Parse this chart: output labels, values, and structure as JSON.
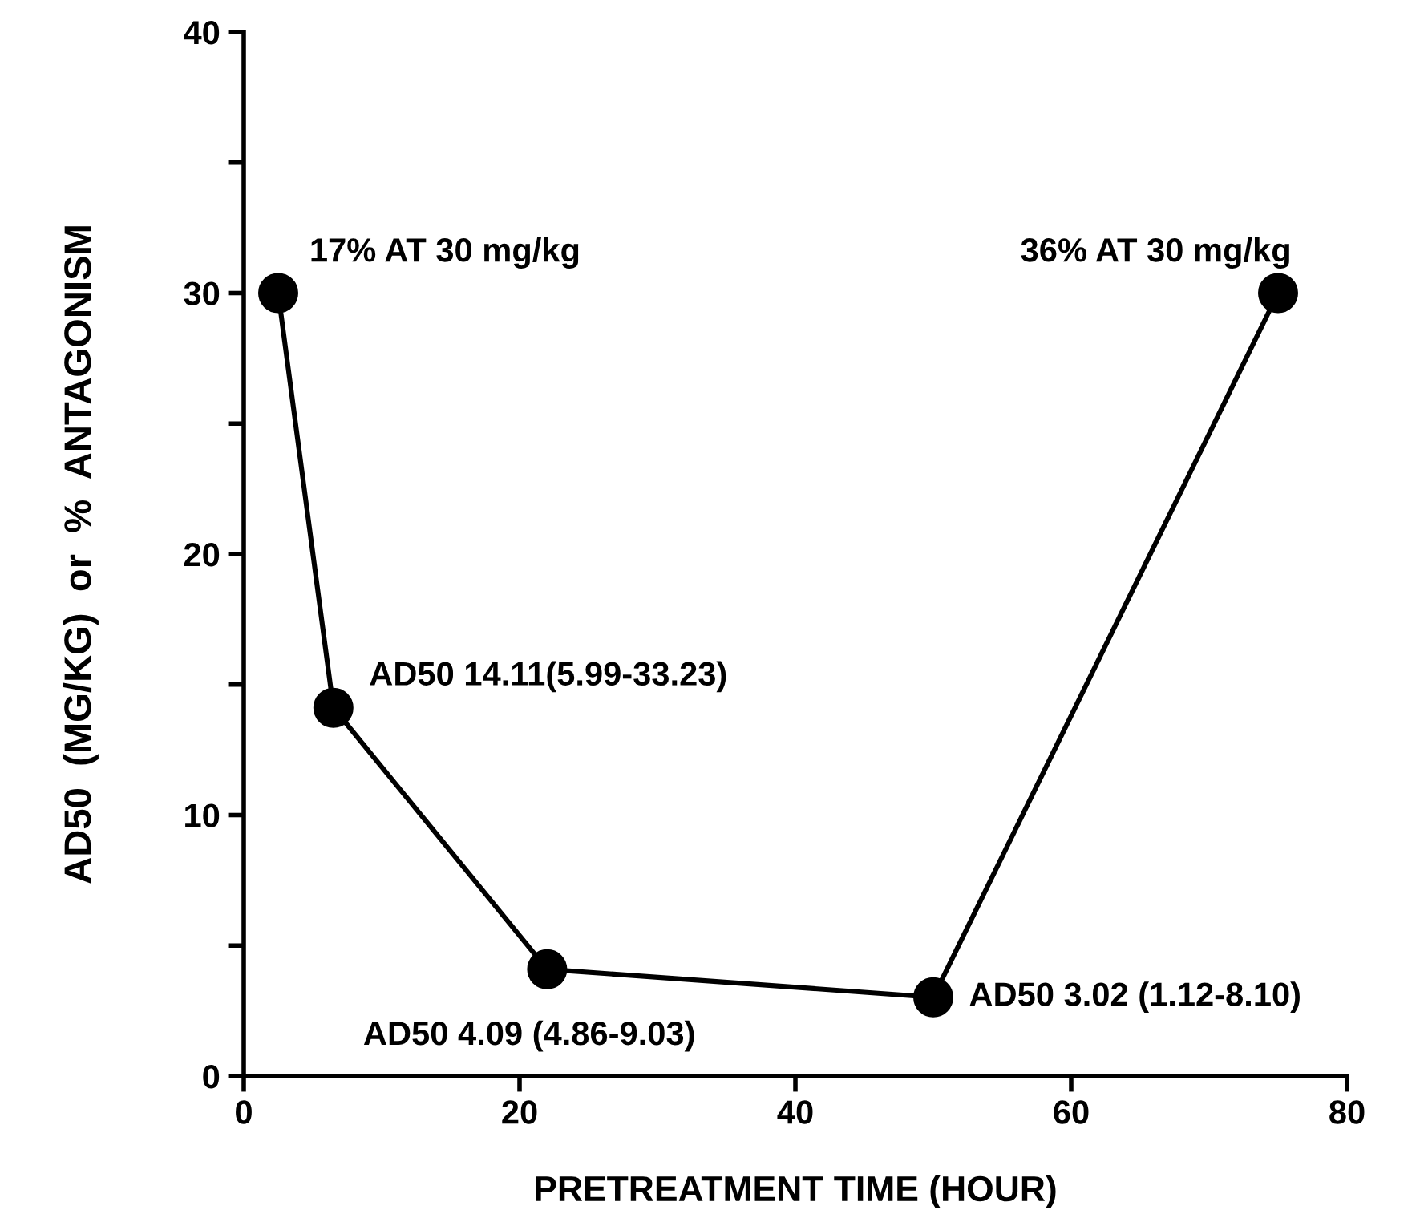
{
  "chart_data": {
    "type": "line",
    "xlabel": "PRETREATMENT TIME (HOUR)",
    "ylabel": "AD50  (MG/KG)  or  %  ANTAGONISM",
    "x": [
      2.5,
      6.5,
      22,
      50,
      75
    ],
    "series": [
      {
        "color": "#000000",
        "values": [
          30,
          14.11,
          4.09,
          3.02,
          30
        ]
      }
    ],
    "marker": "circle",
    "line_style": "solid",
    "grid": false,
    "legend": false,
    "xlim": [
      0,
      80
    ],
    "xticks": [
      0,
      20,
      40,
      60,
      80
    ],
    "ylim": [
      0,
      40
    ],
    "yticks": [
      0,
      {
        "value": 5,
        "label": null
      },
      10,
      {
        "value": 15,
        "label": null
      },
      20,
      {
        "value": 25,
        "label": null
      },
      30,
      {
        "value": 35,
        "label": null
      },
      40
    ],
    "annotations": [
      {
        "text": "17% AT 30 mg/kg",
        "x": 2.5,
        "y": 30
      },
      {
        "text": "AD50 14.11(5.99-33.23)",
        "x": 6.5,
        "y": 14.11
      },
      {
        "text": "AD50 4.09 (4.86-9.03)",
        "x": 22,
        "y": 4.09
      },
      {
        "text": "AD50 3.02 (1.12-8.10)",
        "x": 50,
        "y": 3.02
      },
      {
        "text": "36% AT 30 mg/kg",
        "x": 75,
        "y": 30
      }
    ]
  }
}
